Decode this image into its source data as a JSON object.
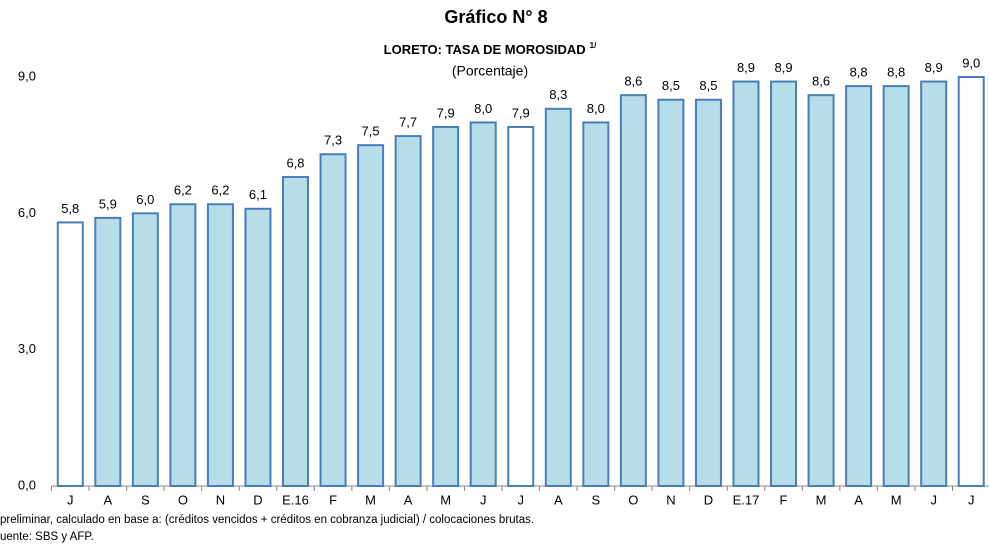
{
  "chart_data": {
    "type": "bar",
    "title": "Gráfico N° 8",
    "subtitle": "LORETO: TASA DE MOROSIDAD",
    "subtitle_note": "1/",
    "unit": "(Porcentaje)",
    "categories": [
      "J",
      "A",
      "S",
      "O",
      "N",
      "D",
      "E.16",
      "F",
      "M",
      "A",
      "M",
      "J",
      "J",
      "A",
      "S",
      "O",
      "N",
      "D",
      "E.17",
      "F",
      "M",
      "A",
      "M",
      "J",
      "J"
    ],
    "values": [
      5.8,
      5.9,
      6.0,
      6.2,
      6.2,
      6.1,
      6.8,
      7.3,
      7.5,
      7.7,
      7.9,
      8.0,
      7.9,
      8.3,
      8.0,
      8.6,
      8.5,
      8.5,
      8.9,
      8.9,
      8.6,
      8.8,
      8.8,
      8.9,
      9.0
    ],
    "value_labels": [
      "5,8",
      "5,9",
      "6,0",
      "6,2",
      "6,2",
      "6,1",
      "6,8",
      "7,3",
      "7,5",
      "7,7",
      "7,9",
      "8,0",
      "7,9",
      "8,3",
      "8,0",
      "8,6",
      "8,5",
      "8,5",
      "8,9",
      "8,9",
      "8,6",
      "8,8",
      "8,8",
      "8,9",
      "9,0"
    ],
    "colors": [
      "#ffffff",
      "#b7dde8",
      "#b7dde8",
      "#b7dde8",
      "#b7dde8",
      "#b7dde8",
      "#b7dde8",
      "#b7dde8",
      "#b7dde8",
      "#b7dde8",
      "#b7dde8",
      "#b7dde8",
      "#ffffff",
      "#b7dde8",
      "#b7dde8",
      "#b7dde8",
      "#b7dde8",
      "#b7dde8",
      "#b7dde8",
      "#b7dde8",
      "#b7dde8",
      "#b7dde8",
      "#b7dde8",
      "#b7dde8",
      "#ffffff"
    ],
    "edge_color": "#4a7ebb",
    "ylim": [
      0,
      9
    ],
    "yticks": [
      {
        "value": 0,
        "label": "0,0"
      },
      {
        "value": 3,
        "label": "3,0"
      },
      {
        "value": 6,
        "label": "6,0"
      },
      {
        "value": 9,
        "label": "9,0"
      }
    ],
    "notes": [
      "preliminar, calculado en base a: (créditos vencidos + créditos en cobranza judicial) / colocaciones brutas.",
      "uente: SBS  y AFP."
    ]
  }
}
